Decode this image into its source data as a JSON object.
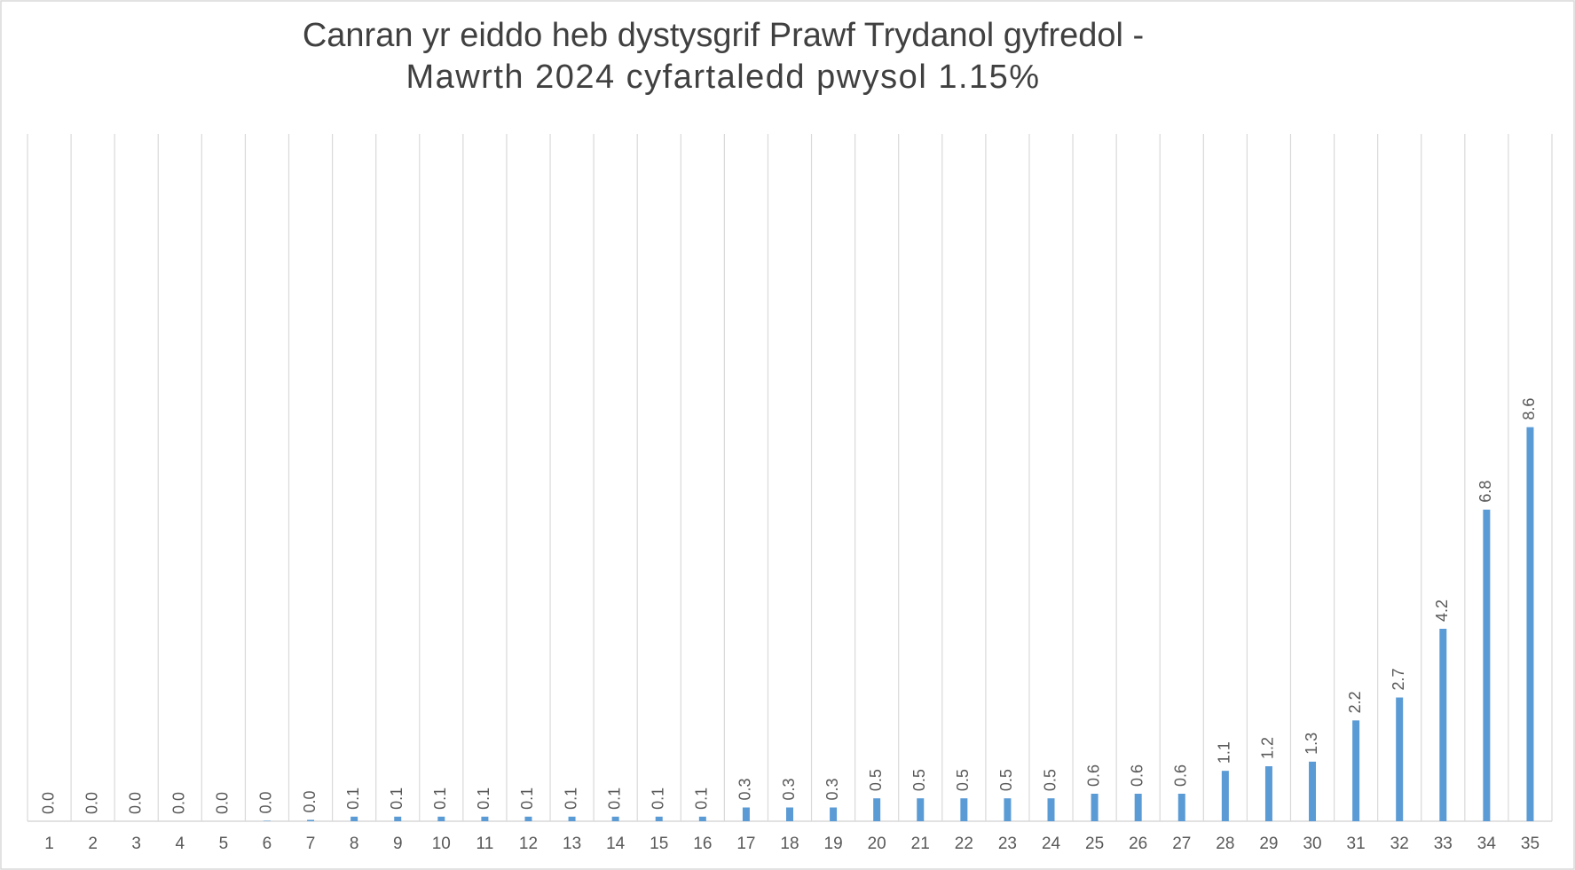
{
  "chart_data": {
    "type": "bar",
    "title": [
      "Canran yr eiddo heb dystysgrif Prawf Trydanol gyfredol -",
      "Mawrth 2024 cyfartaledd pwysol 1.15%"
    ],
    "categories": [
      "1",
      "2",
      "3",
      "4",
      "5",
      "6",
      "7",
      "8",
      "9",
      "10",
      "11",
      "12",
      "13",
      "14",
      "15",
      "16",
      "17",
      "18",
      "19",
      "20",
      "21",
      "22",
      "23",
      "24",
      "25",
      "26",
      "27",
      "28",
      "29",
      "30",
      "31",
      "32",
      "33",
      "34",
      "35"
    ],
    "values": [
      0,
      0,
      0,
      0,
      0,
      0.01,
      0.03,
      0.1,
      0.1,
      0.1,
      0.1,
      0.1,
      0.1,
      0.1,
      0.1,
      0.1,
      0.3,
      0.3,
      0.3,
      0.5,
      0.5,
      0.5,
      0.5,
      0.5,
      0.6,
      0.6,
      0.6,
      1.1,
      1.2,
      1.3,
      2.2,
      2.7,
      4.2,
      6.8,
      8.6
    ],
    "value_labels": [
      "0.0",
      "0.0",
      "0.0",
      "0.0",
      "0.0",
      "0.0",
      "0.0",
      "0.1",
      "0.1",
      "0.1",
      "0.1",
      "0.1",
      "0.1",
      "0.1",
      "0.1",
      "0.1",
      "0.3",
      "0.3",
      "0.3",
      "0.5",
      "0.5",
      "0.5",
      "0.5",
      "0.5",
      "0.6",
      "0.6",
      "0.6",
      "1.1",
      "1.2",
      "1.3",
      "2.2",
      "2.7",
      "4.2",
      "6.8",
      "8.6"
    ],
    "color": "#5b9bd5",
    "ylim": [
      0,
      15
    ],
    "grid": true
  }
}
